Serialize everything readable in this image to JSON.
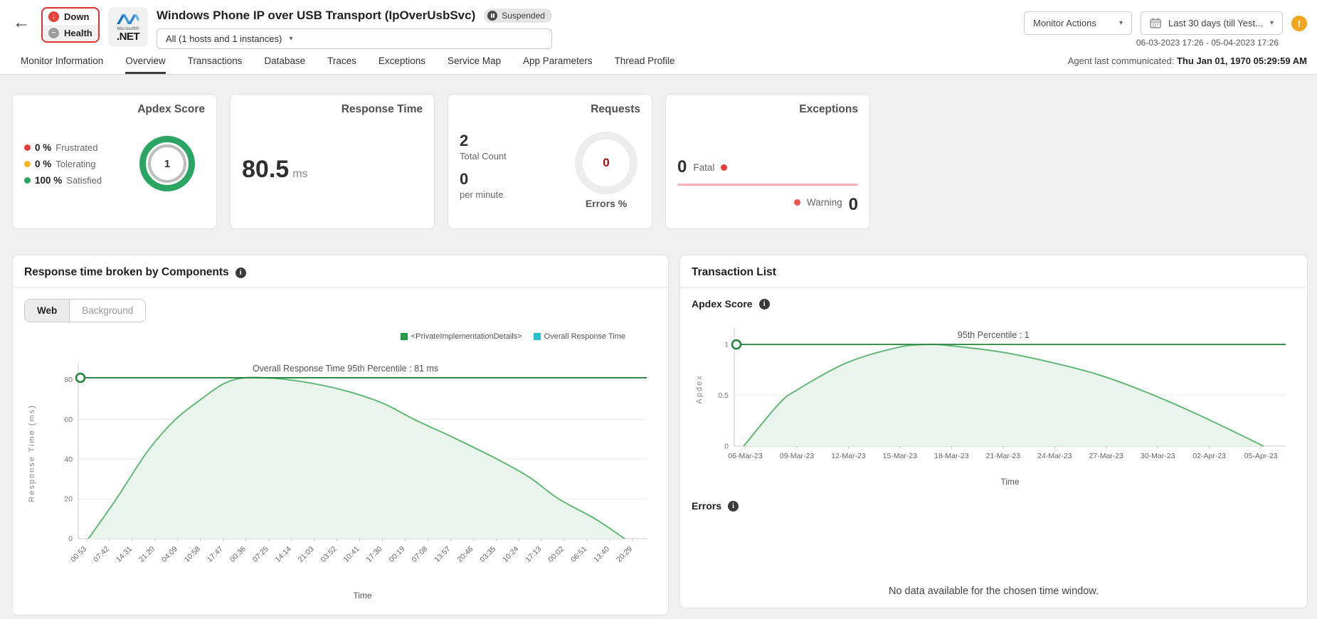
{
  "header": {
    "back_icon": "←",
    "status_badge": {
      "down_label": "Down",
      "health_label": "Health",
      "down_color": "#e8413c",
      "health_color": "#9e9e9e"
    },
    "logo": {
      "brand": "Microsoft®",
      "product": ".NET"
    },
    "title": "Windows Phone IP over USB Transport (IpOverUsbSvc)",
    "suspended_badge": "Suspended",
    "host_selector": "All (1 hosts and 1 instances)",
    "monitor_actions": "Monitor Actions",
    "date_range_button": "Last 30 days (till Yest...",
    "date_range_text": "06-03-2023 17:26 - 05-04-2023 17:26",
    "warning_icon": "!"
  },
  "tabs": {
    "items": [
      "Monitor Information",
      "Overview",
      "Transactions",
      "Database",
      "Traces",
      "Exceptions",
      "Service Map",
      "App Parameters",
      "Thread Profile"
    ],
    "active": "Overview",
    "agent_label": "Agent last communicated:",
    "agent_value": "Thu Jan 01, 1970 05:29:59 AM"
  },
  "cards": {
    "apdex": {
      "title": "Apdex Score",
      "rows": [
        {
          "value": "0 %",
          "label": "Frustrated",
          "color": "#e8413c"
        },
        {
          "value": "0 %",
          "label": "Tolerating",
          "color": "#fbb521"
        },
        {
          "value": "100 %",
          "label": "Satisfied",
          "color": "#2aa662"
        }
      ],
      "score": "1"
    },
    "response_time": {
      "title": "Response Time",
      "value": "80.5",
      "unit": "ms"
    },
    "requests": {
      "title": "Requests",
      "total_count": "2",
      "total_label": "Total Count",
      "per_minute": "0",
      "per_minute_label": "per minute",
      "errors_value": "0",
      "errors_label": "Errors %"
    },
    "exceptions": {
      "title": "Exceptions",
      "fatal_value": "0",
      "fatal_label": "Fatal",
      "warning_label": "Warning",
      "warning_value": "0",
      "line_color": "#f6b2b8",
      "fatal_dot": "#e8413c",
      "warning_dot": "#ef5350"
    }
  },
  "left_panel": {
    "title": "Response time broken by Components",
    "toggle": [
      "Web",
      "Background"
    ],
    "active_toggle": "Web"
  },
  "right_panel": {
    "title": "Transaction List",
    "apdex_heading": "Apdex Score",
    "errors_heading": "Errors",
    "no_data": "No data available for the chosen time window."
  },
  "chart_data": [
    {
      "type": "area",
      "title": "Response time broken by Components",
      "xlabel": "Time",
      "ylabel": "Response Time (ms)",
      "ylim": [
        0,
        86
      ],
      "y_ticks": [
        0,
        20,
        40,
        60,
        80
      ],
      "x_ticks": [
        "00:53",
        "07:42",
        "14:31",
        "21:20",
        "04:09",
        "10:58",
        "17:47",
        "00:36",
        "07:25",
        "14:14",
        "21:03",
        "03:52",
        "10:41",
        "17:30",
        "00:19",
        "07:08",
        "13:57",
        "20:46",
        "03:35",
        "10:24",
        "17:13",
        "00:02",
        "06:51",
        "13:40",
        "20:29"
      ],
      "grid": true,
      "legend_position": "top-right",
      "legend": [
        {
          "label": "<PrivateImplementationDetails>",
          "color": "#21a049"
        },
        {
          "label": "Overall Response Time",
          "color": "#25c2cb"
        }
      ],
      "percentile_line": {
        "label": "Overall Response Time 95th Percentile : 81 ms",
        "value": 81
      },
      "series": [
        {
          "name": "Overall Response Time",
          "points": [
            [
              0.018,
              0
            ],
            [
              0.067,
              20
            ],
            [
              0.122,
              44
            ],
            [
              0.171,
              60
            ],
            [
              0.22,
              71
            ],
            [
              0.256,
              78
            ],
            [
              0.293,
              81
            ],
            [
              0.354,
              80.5
            ],
            [
              0.415,
              78
            ],
            [
              0.476,
              74
            ],
            [
              0.537,
              68
            ],
            [
              0.591,
              60
            ],
            [
              0.659,
              51
            ],
            [
              0.737,
              40
            ],
            [
              0.793,
              31
            ],
            [
              0.845,
              20
            ],
            [
              0.909,
              10
            ],
            [
              0.961,
              0
            ]
          ]
        }
      ],
      "colors": {
        "line": "#63b878",
        "fill": "#e8f4ec",
        "hline": "#20823c"
      }
    },
    {
      "type": "area",
      "title": "Apdex Score",
      "xlabel": "Time",
      "ylabel": "Apdex",
      "ylim": [
        0,
        1.12
      ],
      "y_ticks": [
        0,
        0.5,
        1
      ],
      "x_ticks": [
        "06-Mar-23",
        "09-Mar-23",
        "12-Mar-23",
        "15-Mar-23",
        "18-Mar-23",
        "21-Mar-23",
        "24-Mar-23",
        "27-Mar-23",
        "30-Mar-23",
        "02-Apr-23",
        "05-Apr-23"
      ],
      "grid": true,
      "percentile_line": {
        "label": "95th Percentile : 1",
        "value": 1
      },
      "series": [
        {
          "name": "Apdex",
          "points": [
            [
              0.017,
              0
            ],
            [
              0.08,
              0.41
            ],
            [
              0.113,
              0.55
            ],
            [
              0.204,
              0.82
            ],
            [
              0.296,
              0.97
            ],
            [
              0.35,
              1.0
            ],
            [
              0.387,
              0.99
            ],
            [
              0.479,
              0.93
            ],
            [
              0.57,
              0.83
            ],
            [
              0.662,
              0.7
            ],
            [
              0.752,
              0.52
            ],
            [
              0.845,
              0.3
            ],
            [
              0.96,
              0
            ]
          ]
        }
      ],
      "colors": {
        "line": "#63b878",
        "fill": "#e8f4ec",
        "hline": "#20823c"
      }
    }
  ]
}
